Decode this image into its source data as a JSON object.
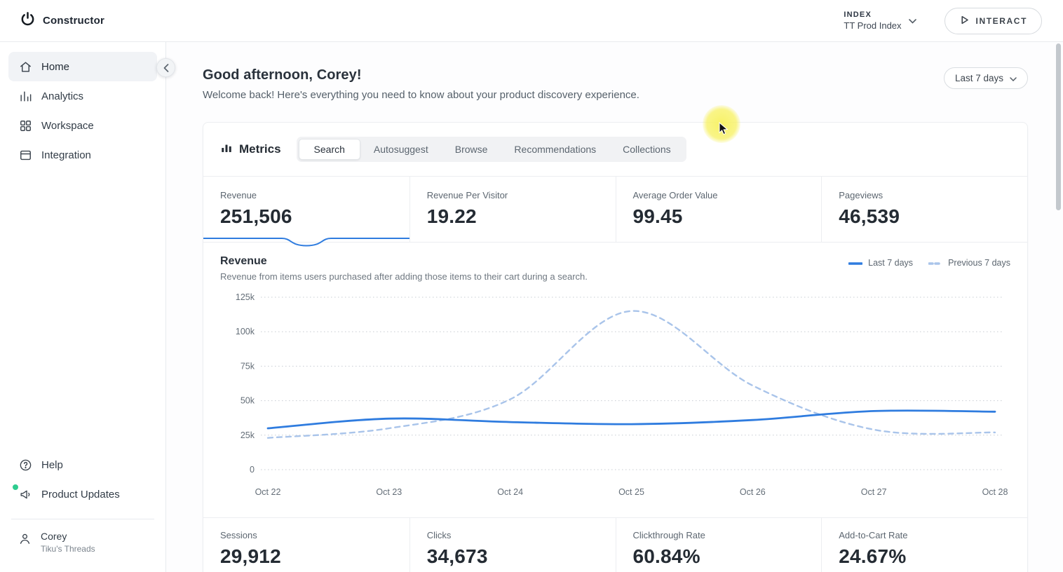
{
  "colors": {
    "accent": "#2f7cdf",
    "accent_light": "#a9c4ea",
    "highlight_yellow": "#f7f15f",
    "badge_green": "#2ecc8f"
  },
  "topbar": {
    "brand": "Constructor",
    "index": {
      "label": "INDEX",
      "value": "TT Prod Index"
    },
    "interact_button": "INTERACT"
  },
  "sidebar": {
    "items": [
      {
        "label": "Home"
      },
      {
        "label": "Analytics"
      },
      {
        "label": "Workspace"
      },
      {
        "label": "Integration"
      }
    ],
    "help": "Help",
    "product_updates": "Product Updates",
    "user": {
      "name": "Corey",
      "org": "Tiku's Threads"
    }
  },
  "page": {
    "greeting": "Good afternoon, Corey!",
    "welcome": "Welcome back! Here's everything you need to know about your product discovery experience.",
    "date_range": "Last 7 days"
  },
  "metrics": {
    "title": "Metrics",
    "tabs": [
      "Search",
      "Autosuggest",
      "Browse",
      "Recommendations",
      "Collections"
    ],
    "active_tab": "Search",
    "top_stats": [
      {
        "label": "Revenue",
        "value": "251,506"
      },
      {
        "label": "Revenue Per Visitor",
        "value": "19.22"
      },
      {
        "label": "Average Order Value",
        "value": "99.45"
      },
      {
        "label": "Pageviews",
        "value": "46,539"
      }
    ],
    "bottom_stats": [
      {
        "label": "Sessions",
        "value": "29,912"
      },
      {
        "label": "Clicks",
        "value": "34,673"
      },
      {
        "label": "Clickthrough Rate",
        "value": "60.84%"
      },
      {
        "label": "Add-to-Cart Rate",
        "value": "24.67%"
      }
    ]
  },
  "chart_data": {
    "type": "line",
    "title": "Revenue",
    "subtitle": "Revenue from items users purchased after adding those items to their cart during a search.",
    "x": [
      "Oct 22",
      "Oct 23",
      "Oct 24",
      "Oct 25",
      "Oct 26",
      "Oct 27",
      "Oct 28"
    ],
    "series": [
      {
        "name": "Last 7 days",
        "color": "#2f7cdf",
        "dash": "",
        "values": [
          30000,
          37000,
          34500,
          33000,
          36000,
          42500,
          42000
        ]
      },
      {
        "name": "Previous 7 days",
        "color": "#a9c4ea",
        "dash": "7 6",
        "values": [
          23000,
          30000,
          51000,
          115000,
          61000,
          29000,
          27000
        ]
      }
    ],
    "ylim": [
      0,
      125000
    ],
    "yticks": [
      "0",
      "25k",
      "50k",
      "75k",
      "100k",
      "125k"
    ],
    "grid": "dotted-horizontal",
    "legend_position": "top-right"
  }
}
